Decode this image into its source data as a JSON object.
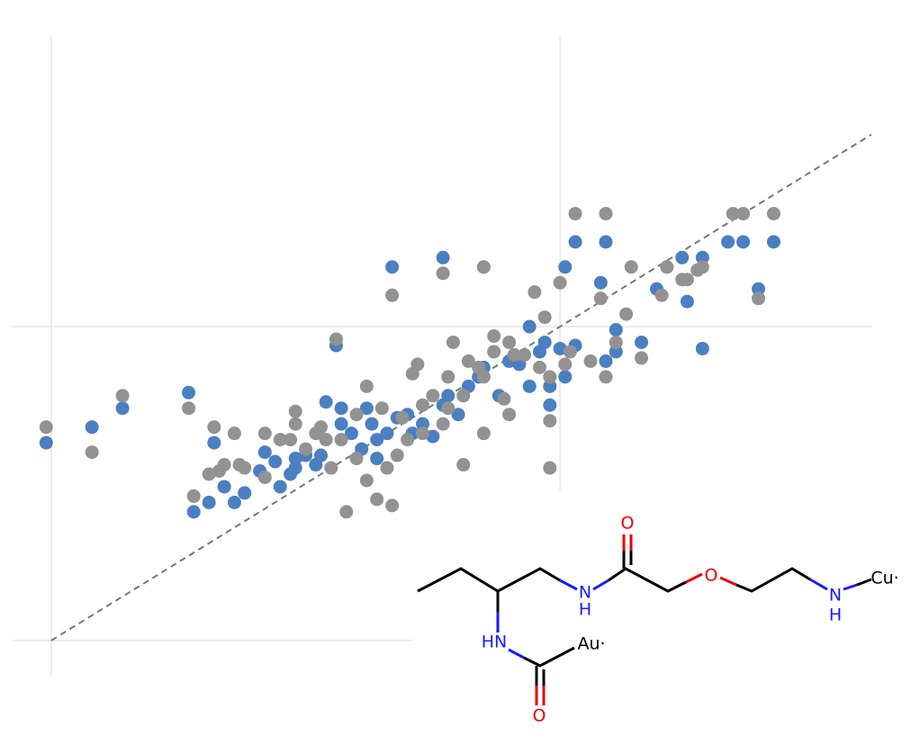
{
  "chart_data": {
    "type": "scatter",
    "xlim": [
      -0.076,
      1.612
    ],
    "ylim": [
      -0.115,
      1.926
    ],
    "xticks": [
      0,
      1
    ],
    "yticks": [
      0,
      1
    ],
    "grid": true,
    "diagonal": true,
    "series": [
      {
        "color": "#4a7fc1",
        "x": [
          -0.01,
          0.08,
          0.14,
          0.27,
          0.32,
          0.28,
          0.31,
          0.34,
          0.36,
          0.38,
          0.41,
          0.42,
          0.45,
          0.47,
          0.48,
          0.52,
          0.54,
          0.56,
          0.57,
          0.59,
          0.61,
          0.63,
          0.64,
          0.66,
          0.68,
          0.7,
          0.71,
          0.73,
          0.75,
          0.77,
          0.78,
          0.8,
          0.82,
          0.84,
          0.85,
          0.88,
          0.9,
          0.92,
          0.94,
          0.96,
          0.97,
          0.98,
          0.98,
          1.0,
          1.01,
          0.94,
          1.01,
          1.03,
          1.09,
          0.67,
          0.77,
          0.85,
          1.08,
          1.11,
          1.11,
          1.16,
          1.19,
          1.21,
          1.24,
          1.25,
          1.28,
          1.28,
          1.33,
          1.36,
          1.39,
          1.42,
          1.09,
          1.03,
          0.53,
          0.5,
          0.48,
          0.44,
          0.57,
          0.62,
          0.64
        ],
        "values": [
          0.63,
          0.68,
          0.74,
          0.79,
          0.63,
          0.41,
          0.44,
          0.49,
          0.44,
          0.47,
          0.54,
          0.6,
          0.49,
          0.53,
          0.55,
          0.56,
          0.76,
          0.94,
          0.69,
          0.66,
          0.61,
          0.69,
          0.64,
          0.66,
          0.71,
          0.72,
          0.66,
          0.69,
          0.65,
          0.75,
          0.78,
          0.72,
          0.81,
          0.84,
          0.87,
          0.78,
          0.89,
          0.88,
          0.81,
          0.92,
          0.95,
          0.75,
          0.81,
          0.93,
          0.84,
          1.0,
          1.19,
          1.27,
          1.27,
          1.19,
          1.22,
          1.19,
          1.14,
          0.99,
          0.92,
          0.95,
          1.12,
          1.19,
          1.22,
          1.08,
          1.22,
          0.93,
          1.27,
          1.27,
          1.12,
          1.27,
          0.89,
          0.94,
          0.59,
          0.59,
          0.58,
          0.57,
          0.74,
          0.74,
          0.58
        ]
      },
      {
        "color": "#929292",
        "x": [
          -0.01,
          0.08,
          0.14,
          0.27,
          0.32,
          0.36,
          0.28,
          0.31,
          0.34,
          0.38,
          0.42,
          0.45,
          0.48,
          0.48,
          0.5,
          0.52,
          0.53,
          0.56,
          0.58,
          0.62,
          0.62,
          0.64,
          0.67,
          0.66,
          0.68,
          0.7,
          0.72,
          0.73,
          0.75,
          0.77,
          0.78,
          0.79,
          0.81,
          0.82,
          0.84,
          0.85,
          0.87,
          0.89,
          0.9,
          0.91,
          0.93,
          0.95,
          0.96,
          0.97,
          0.98,
          0.98,
          1.0,
          1.01,
          1.03,
          1.09,
          1.06,
          1.09,
          1.11,
          1.13,
          1.14,
          1.16,
          1.2,
          1.21,
          1.24,
          1.25,
          1.27,
          1.28,
          1.34,
          1.36,
          1.39,
          1.42,
          0.67,
          0.77,
          0.85,
          1.08,
          0.87,
          0.81,
          0.73,
          0.69,
          0.65,
          0.6,
          0.57,
          0.55,
          0.6,
          0.54,
          0.47,
          0.42,
          0.37,
          0.33,
          0.85,
          0.98,
          0.9,
          0.78,
          0.71,
          1.02
        ],
        "values": [
          0.68,
          0.6,
          0.78,
          0.74,
          0.68,
          0.66,
          0.46,
          0.53,
          0.56,
          0.55,
          0.66,
          0.64,
          0.69,
          0.73,
          0.61,
          0.66,
          0.68,
          0.96,
          0.41,
          0.81,
          0.51,
          0.45,
          0.43,
          0.55,
          0.59,
          0.64,
          0.88,
          0.75,
          0.78,
          0.69,
          0.74,
          0.95,
          0.56,
          0.89,
          0.87,
          0.84,
          0.97,
          0.77,
          0.72,
          0.91,
          0.91,
          1.11,
          0.87,
          1.03,
          0.55,
          0.7,
          1.14,
          0.88,
          1.36,
          1.36,
          0.89,
          0.84,
          0.95,
          1.04,
          1.19,
          0.9,
          1.1,
          1.19,
          1.15,
          1.15,
          1.18,
          1.19,
          1.36,
          1.36,
          1.09,
          1.36,
          1.1,
          1.17,
          1.19,
          1.09,
          0.92,
          0.78,
          0.66,
          0.71,
          0.74,
          0.72,
          0.64,
          0.55,
          0.58,
          0.64,
          0.64,
          0.52,
          0.56,
          0.54,
          0.66,
          0.84,
          0.95,
          0.84,
          0.85,
          0.92
        ]
      }
    ]
  },
  "molecule": {
    "labels": [
      "O",
      "N",
      "H",
      "O",
      "N",
      "H",
      "Cu·",
      "HN",
      "Au·",
      "O"
    ]
  }
}
